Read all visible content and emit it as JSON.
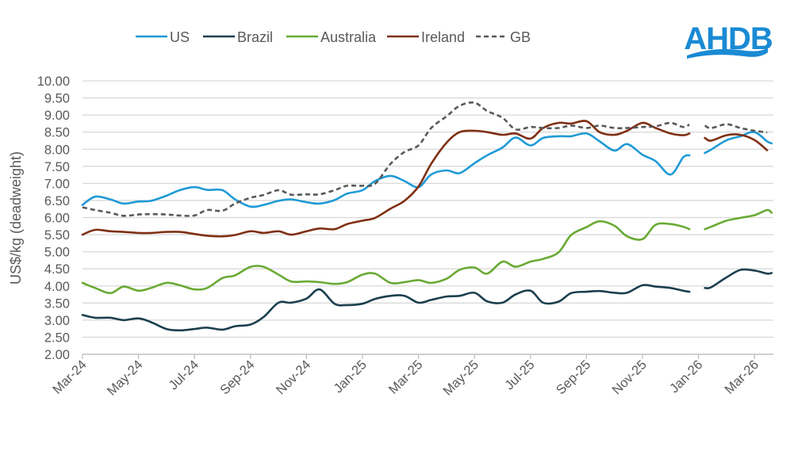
{
  "chart_data": {
    "type": "line",
    "title": "",
    "xlabel": "",
    "ylabel": "US$/kg (deadweight)",
    "ylim": [
      2.0,
      10.0
    ],
    "ytick_step": 0.5,
    "yticks": [
      "2.00",
      "2.50",
      "3.00",
      "3.50",
      "4.00",
      "4.50",
      "5.00",
      "5.50",
      "6.00",
      "6.50",
      "7.00",
      "7.50",
      "8.00",
      "8.50",
      "9.00",
      "9.50",
      "10.00"
    ],
    "xticks": [
      {
        "date": "2024-03-01",
        "label": "Mar-24"
      },
      {
        "date": "2024-05-01",
        "label": "May-24"
      },
      {
        "date": "2024-07-01",
        "label": "Jul-24"
      },
      {
        "date": "2024-09-01",
        "label": "Sep-24"
      },
      {
        "date": "2024-11-01",
        "label": "Nov-24"
      },
      {
        "date": "2025-01-01",
        "label": "Jan-25"
      },
      {
        "date": "2025-03-01",
        "label": "Mar-25"
      },
      {
        "date": "2025-05-01",
        "label": "May-25"
      },
      {
        "date": "2025-07-01",
        "label": "Jul-25"
      },
      {
        "date": "2025-09-01",
        "label": "Sep-25"
      },
      {
        "date": "2025-11-01",
        "label": "Nov-25"
      },
      {
        "date": "2026-01-01",
        "label": "Jan-26"
      },
      {
        "date": "2026-03-01",
        "label": "Mar-26"
      }
    ],
    "grid": true,
    "legend_position": "top",
    "x": [
      "2024-03-01",
      "2024-03-15",
      "2024-04-01",
      "2024-04-15",
      "2024-05-01",
      "2024-05-15",
      "2024-06-01",
      "2024-06-15",
      "2024-07-01",
      "2024-07-15",
      "2024-08-01",
      "2024-08-15",
      "2024-09-01",
      "2024-09-15",
      "2024-10-01",
      "2024-10-15",
      "2024-11-01",
      "2024-11-15",
      "2024-12-01",
      "2024-12-15",
      "2025-01-01",
      "2025-01-15",
      "2025-02-01",
      "2025-02-15",
      "2025-03-01",
      "2025-03-15",
      "2025-04-01",
      "2025-04-15",
      "2025-05-01",
      "2025-05-15",
      "2025-06-01",
      "2025-06-15",
      "2025-07-01",
      "2025-07-15",
      "2025-08-01",
      "2025-08-15",
      "2025-09-01",
      "2025-09-15",
      "2025-10-01",
      "2025-10-15",
      "2025-11-01",
      "2025-11-15",
      "2025-12-01",
      "2025-12-15",
      "2025-12-22",
      "2026-01-01",
      "2026-01-08",
      "2026-01-15",
      "2026-02-01",
      "2026-02-15",
      "2026-03-01",
      "2026-03-15",
      "2026-03-20"
    ],
    "series": [
      {
        "name": "US",
        "color": "#1f9ad6",
        "dash": false,
        "values": [
          6.37,
          6.61,
          6.53,
          6.41,
          6.47,
          6.49,
          6.64,
          6.8,
          6.89,
          6.81,
          6.8,
          6.53,
          6.32,
          6.37,
          6.49,
          6.53,
          6.45,
          6.41,
          6.51,
          6.7,
          6.8,
          7.07,
          7.22,
          7.07,
          6.89,
          7.26,
          7.38,
          7.3,
          7.59,
          7.82,
          8.05,
          8.34,
          8.11,
          8.33,
          8.38,
          8.38,
          8.46,
          8.23,
          7.96,
          8.15,
          7.84,
          7.65,
          7.26,
          7.76,
          7.82,
          null,
          7.89,
          7.99,
          8.26,
          8.38,
          8.5,
          8.23,
          8.17
        ]
      },
      {
        "name": "Brazil",
        "color": "#1b3f4f",
        "dash": false,
        "values": [
          3.15,
          3.07,
          3.07,
          3.0,
          3.05,
          2.94,
          2.74,
          2.7,
          2.74,
          2.78,
          2.72,
          2.82,
          2.87,
          3.09,
          3.51,
          3.51,
          3.63,
          3.9,
          3.48,
          3.44,
          3.48,
          3.62,
          3.71,
          3.71,
          3.51,
          3.59,
          3.69,
          3.71,
          3.8,
          3.55,
          3.51,
          3.75,
          3.86,
          3.51,
          3.54,
          3.79,
          3.83,
          3.85,
          3.8,
          3.8,
          4.02,
          3.98,
          3.94,
          3.86,
          3.83,
          null,
          3.94,
          3.96,
          4.25,
          4.47,
          4.45,
          4.36,
          4.38
        ]
      },
      {
        "name": "Australia",
        "color": "#6aaa35",
        "dash": false,
        "values": [
          4.09,
          3.94,
          3.79,
          3.98,
          3.86,
          3.94,
          4.09,
          4.02,
          3.9,
          3.94,
          4.23,
          4.31,
          4.56,
          4.56,
          4.33,
          4.13,
          4.13,
          4.11,
          4.06,
          4.11,
          4.33,
          4.36,
          4.09,
          4.11,
          4.17,
          4.09,
          4.21,
          4.47,
          4.54,
          4.36,
          4.71,
          4.56,
          4.71,
          4.79,
          4.98,
          5.49,
          5.72,
          5.89,
          5.76,
          5.45,
          5.37,
          5.79,
          5.81,
          5.73,
          5.66,
          null,
          5.66,
          5.73,
          5.91,
          5.99,
          6.07,
          6.22,
          6.14
        ]
      },
      {
        "name": "Ireland",
        "color": "#7f2f12",
        "dash": false,
        "values": [
          5.5,
          5.64,
          5.6,
          5.58,
          5.55,
          5.55,
          5.58,
          5.58,
          5.52,
          5.47,
          5.45,
          5.49,
          5.6,
          5.55,
          5.6,
          5.5,
          5.6,
          5.68,
          5.66,
          5.81,
          5.91,
          5.99,
          6.26,
          6.49,
          6.91,
          7.57,
          8.19,
          8.5,
          8.54,
          8.5,
          8.42,
          8.46,
          8.31,
          8.62,
          8.77,
          8.75,
          8.82,
          8.5,
          8.42,
          8.54,
          8.77,
          8.62,
          8.46,
          8.41,
          8.46,
          null,
          8.33,
          8.25,
          8.41,
          8.42,
          8.27,
          7.97,
          null
        ]
      },
      {
        "name": "GB",
        "color": "#595959",
        "dash": true,
        "values": [
          6.3,
          6.22,
          6.14,
          6.05,
          6.09,
          6.1,
          6.09,
          6.06,
          6.06,
          6.22,
          6.2,
          6.41,
          6.58,
          6.66,
          6.8,
          6.67,
          6.68,
          6.68,
          6.8,
          6.93,
          6.93,
          6.99,
          7.57,
          7.92,
          8.11,
          8.62,
          8.96,
          9.27,
          9.36,
          9.12,
          8.92,
          8.58,
          8.65,
          8.62,
          8.62,
          8.69,
          8.62,
          8.69,
          8.62,
          8.62,
          8.65,
          8.67,
          8.77,
          8.65,
          8.72,
          null,
          8.69,
          8.62,
          8.73,
          8.62,
          8.54,
          8.49,
          null
        ]
      }
    ]
  },
  "logo": {
    "text": "AHDB",
    "color": "#1a8ad4"
  }
}
